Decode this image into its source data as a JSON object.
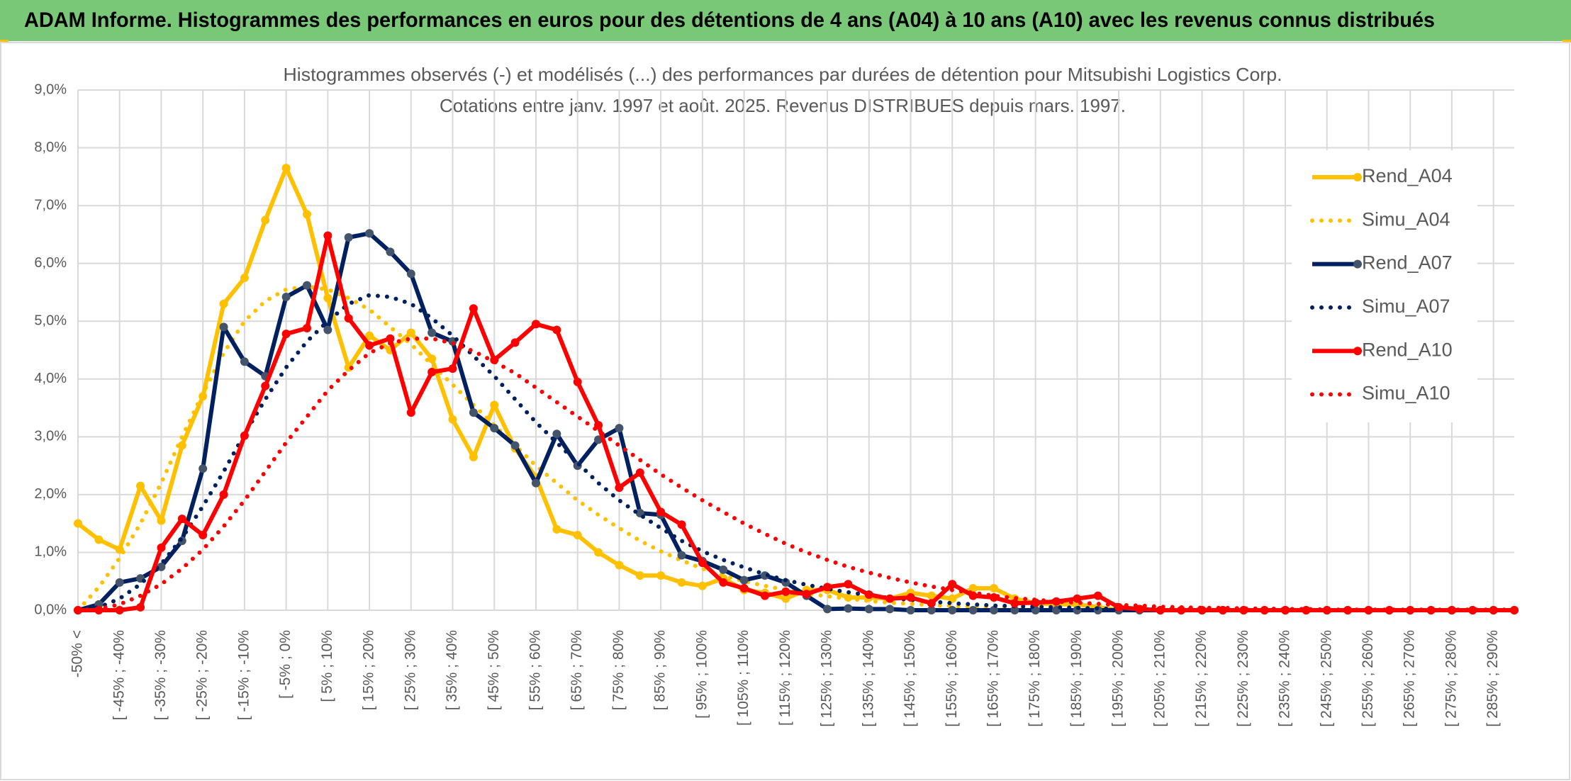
{
  "header": {
    "title": "ADAM Informe. Histogrammes des performances en euros pour des détentions de 4 ans (A04) à 10 ans (A10) avec les revenus connus distribués"
  },
  "chart_data": {
    "type": "line",
    "title": "Histogrammes observés (-) et modélisés (...) des performances par durées de détention pour Mitsubishi Logistics Corp.",
    "subtitle": "Cotations entre janv. 1997 et août. 2025. Revenus DISTRIBUES depuis mars. 1997.",
    "categories": [
      "-50% <",
      null,
      "[ -45% ; -40%",
      null,
      "[ -35% ; -30%",
      null,
      "[ -25% ; -20%",
      null,
      "[ -15% ; -10%",
      null,
      "[ -5% ; 0%",
      null,
      "[ 5% ; 10%",
      null,
      "[ 15% ; 20%",
      null,
      "[ 25% ; 30%",
      null,
      "[ 35% ; 40%",
      null,
      "[ 45% ; 50%",
      null,
      "[ 55% ; 60%",
      null,
      "[ 65% ; 70%",
      null,
      "[ 75% ; 80%",
      null,
      "[ 85% ; 90%",
      null,
      "[ 95% ; 100%",
      null,
      "[ 105% ; 110%",
      null,
      "[ 115% ; 120%",
      null,
      "[ 125% ; 130%",
      null,
      "[ 135% ; 140%",
      null,
      "[ 145% ; 150%",
      null,
      "[ 155% ; 160%",
      null,
      "[ 165% ; 170%",
      null,
      "[ 175% ; 180%",
      null,
      "[ 185% ; 190%",
      null,
      "[ 195% ; 200%",
      null,
      "[ 205% ; 210%",
      null,
      "[ 215% ; 220%",
      null,
      "[ 225% ; 230%",
      null,
      "[ 235% ; 240%",
      null,
      "[ 245% ; 250%",
      null,
      "[ 255% ; 260%",
      null,
      "[ 265% ; 270%",
      null,
      "[ 275% ; 280%",
      null,
      "[ 285% ; 290%",
      null
    ],
    "series": [
      {
        "name": "Rend_A04",
        "color": "#ffc000",
        "dotted": false,
        "values": [
          1.5,
          1.22,
          1.05,
          2.15,
          1.55,
          2.85,
          3.7,
          5.3,
          5.75,
          6.75,
          7.65,
          6.85,
          5.4,
          4.2,
          4.75,
          4.5,
          4.8,
          4.35,
          3.3,
          2.65,
          3.55,
          2.8,
          2.3,
          1.4,
          1.3,
          1.0,
          0.78,
          0.6,
          0.6,
          0.48,
          0.42,
          0.55,
          0.35,
          0.3,
          0.2,
          0.35,
          0.35,
          0.22,
          0.22,
          0.2,
          0.3,
          0.25,
          0.2,
          0.38,
          0.38,
          0.2,
          0.12,
          0.1,
          0.1,
          0.05,
          0,
          0,
          0,
          0,
          0,
          0,
          0,
          0,
          0,
          0,
          0,
          0,
          0,
          0,
          0,
          0,
          0,
          0,
          0,
          0
        ]
      },
      {
        "name": "Simu_A04",
        "color": "#ffc000",
        "dotted": true,
        "values": [
          0,
          0.4,
          0.9,
          1.5,
          2.2,
          3.0,
          3.75,
          4.45,
          5.0,
          5.35,
          5.55,
          5.6,
          5.55,
          5.4,
          5.2,
          4.9,
          4.6,
          4.25,
          3.9,
          3.55,
          3.2,
          2.85,
          2.5,
          2.2,
          1.9,
          1.65,
          1.42,
          1.2,
          1.02,
          0.86,
          0.72,
          0.6,
          0.5,
          0.42,
          0.35,
          0.29,
          0.24,
          0.2,
          0.16,
          0.13,
          0.11,
          0.09,
          0.07,
          0.06,
          0.05,
          0.04,
          0.03,
          0.03,
          0.02,
          0.02,
          0.01,
          0.01,
          0.01,
          0.01,
          0.01,
          0.01,
          0,
          0,
          0,
          0,
          0,
          0,
          0,
          0,
          0,
          0,
          0,
          0,
          0,
          0
        ]
      },
      {
        "name": "Rend_A07",
        "color": "#002060",
        "marker_color": "#44546a",
        "dotted": false,
        "values": [
          0,
          0.1,
          0.48,
          0.55,
          0.75,
          1.2,
          2.45,
          4.9,
          4.3,
          4.05,
          5.42,
          5.62,
          4.85,
          6.45,
          6.52,
          6.2,
          5.82,
          4.8,
          4.65,
          3.42,
          3.15,
          2.85,
          2.2,
          3.05,
          2.5,
          2.95,
          3.15,
          1.68,
          1.65,
          0.95,
          0.85,
          0.7,
          0.52,
          0.6,
          0.48,
          0.25,
          0.02,
          0.03,
          0.02,
          0.02,
          0,
          0,
          0,
          0,
          0,
          0,
          0,
          0,
          0,
          0,
          0,
          0,
          0,
          0,
          0,
          0,
          0,
          0,
          0,
          0,
          0,
          0,
          0,
          0,
          0,
          0,
          0,
          0,
          0,
          0
        ]
      },
      {
        "name": "Simu_A07",
        "color": "#002060",
        "dotted": true,
        "values": [
          0,
          0.05,
          0.2,
          0.45,
          0.8,
          1.25,
          1.8,
          2.4,
          3.05,
          3.65,
          4.2,
          4.65,
          5.0,
          5.3,
          5.45,
          5.42,
          5.3,
          5.05,
          4.75,
          4.4,
          4.05,
          3.65,
          3.25,
          2.9,
          2.55,
          2.2,
          1.9,
          1.65,
          1.42,
          1.2,
          1.02,
          0.87,
          0.74,
          0.62,
          0.52,
          0.44,
          0.37,
          0.31,
          0.26,
          0.21,
          0.18,
          0.15,
          0.12,
          0.1,
          0.08,
          0.07,
          0.06,
          0.05,
          0.04,
          0.03,
          0.02,
          0.02,
          0.01,
          0.01,
          0.01,
          0,
          0,
          0,
          0,
          0,
          0,
          0,
          0,
          0,
          0,
          0,
          0,
          0,
          0,
          0
        ]
      },
      {
        "name": "Rend_A10",
        "color": "#ff0000",
        "dotted": false,
        "values": [
          0,
          0,
          0,
          0.05,
          1.08,
          1.58,
          1.3,
          2.0,
          3.02,
          3.88,
          4.78,
          4.88,
          6.48,
          5.05,
          4.58,
          4.7,
          3.42,
          4.12,
          4.18,
          5.22,
          4.33,
          4.63,
          4.95,
          4.85,
          3.95,
          3.2,
          2.12,
          2.38,
          1.7,
          1.48,
          0.82,
          0.48,
          0.38,
          0.25,
          0.32,
          0.28,
          0.4,
          0.45,
          0.27,
          0.2,
          0.22,
          0.12,
          0.45,
          0.25,
          0.22,
          0.12,
          0.13,
          0.15,
          0.2,
          0.25,
          0.05,
          0.02,
          0,
          0,
          0,
          0,
          0,
          0,
          0,
          0,
          0,
          0,
          0,
          0,
          0,
          0,
          0,
          0,
          0,
          0
        ]
      },
      {
        "name": "Simu_A10",
        "color": "#ff0000",
        "dotted": true,
        "values": [
          0,
          0.02,
          0.1,
          0.25,
          0.45,
          0.72,
          1.05,
          1.45,
          1.9,
          2.4,
          2.9,
          3.35,
          3.8,
          4.15,
          4.45,
          4.62,
          4.7,
          4.7,
          4.62,
          4.48,
          4.3,
          4.1,
          3.85,
          3.6,
          3.35,
          3.1,
          2.85,
          2.6,
          2.35,
          2.12,
          1.9,
          1.7,
          1.5,
          1.32,
          1.15,
          1.0,
          0.87,
          0.75,
          0.65,
          0.56,
          0.48,
          0.41,
          0.35,
          0.3,
          0.25,
          0.21,
          0.18,
          0.15,
          0.13,
          0.11,
          0.09,
          0.08,
          0.06,
          0.05,
          0.04,
          0.04,
          0.03,
          0.03,
          0.02,
          0.02,
          0.01,
          0.01,
          0.01,
          0.01,
          0.01,
          0.01,
          0.01,
          0.01,
          0.01,
          0.01
        ]
      }
    ],
    "ylim": [
      0,
      9
    ],
    "yticks": [
      {
        "value": 0,
        "label": "0,0%"
      },
      {
        "value": 1,
        "label": "1,0%"
      },
      {
        "value": 2,
        "label": "2,0%"
      },
      {
        "value": 3,
        "label": "3,0%"
      },
      {
        "value": 4,
        "label": "4,0%"
      },
      {
        "value": 5,
        "label": "5,0%"
      },
      {
        "value": 6,
        "label": "6,0%"
      },
      {
        "value": 7,
        "label": "7,0%"
      },
      {
        "value": 8,
        "label": "8,0%"
      },
      {
        "value": 9,
        "label": "9,0%"
      }
    ],
    "grid": true,
    "legend": "right"
  }
}
